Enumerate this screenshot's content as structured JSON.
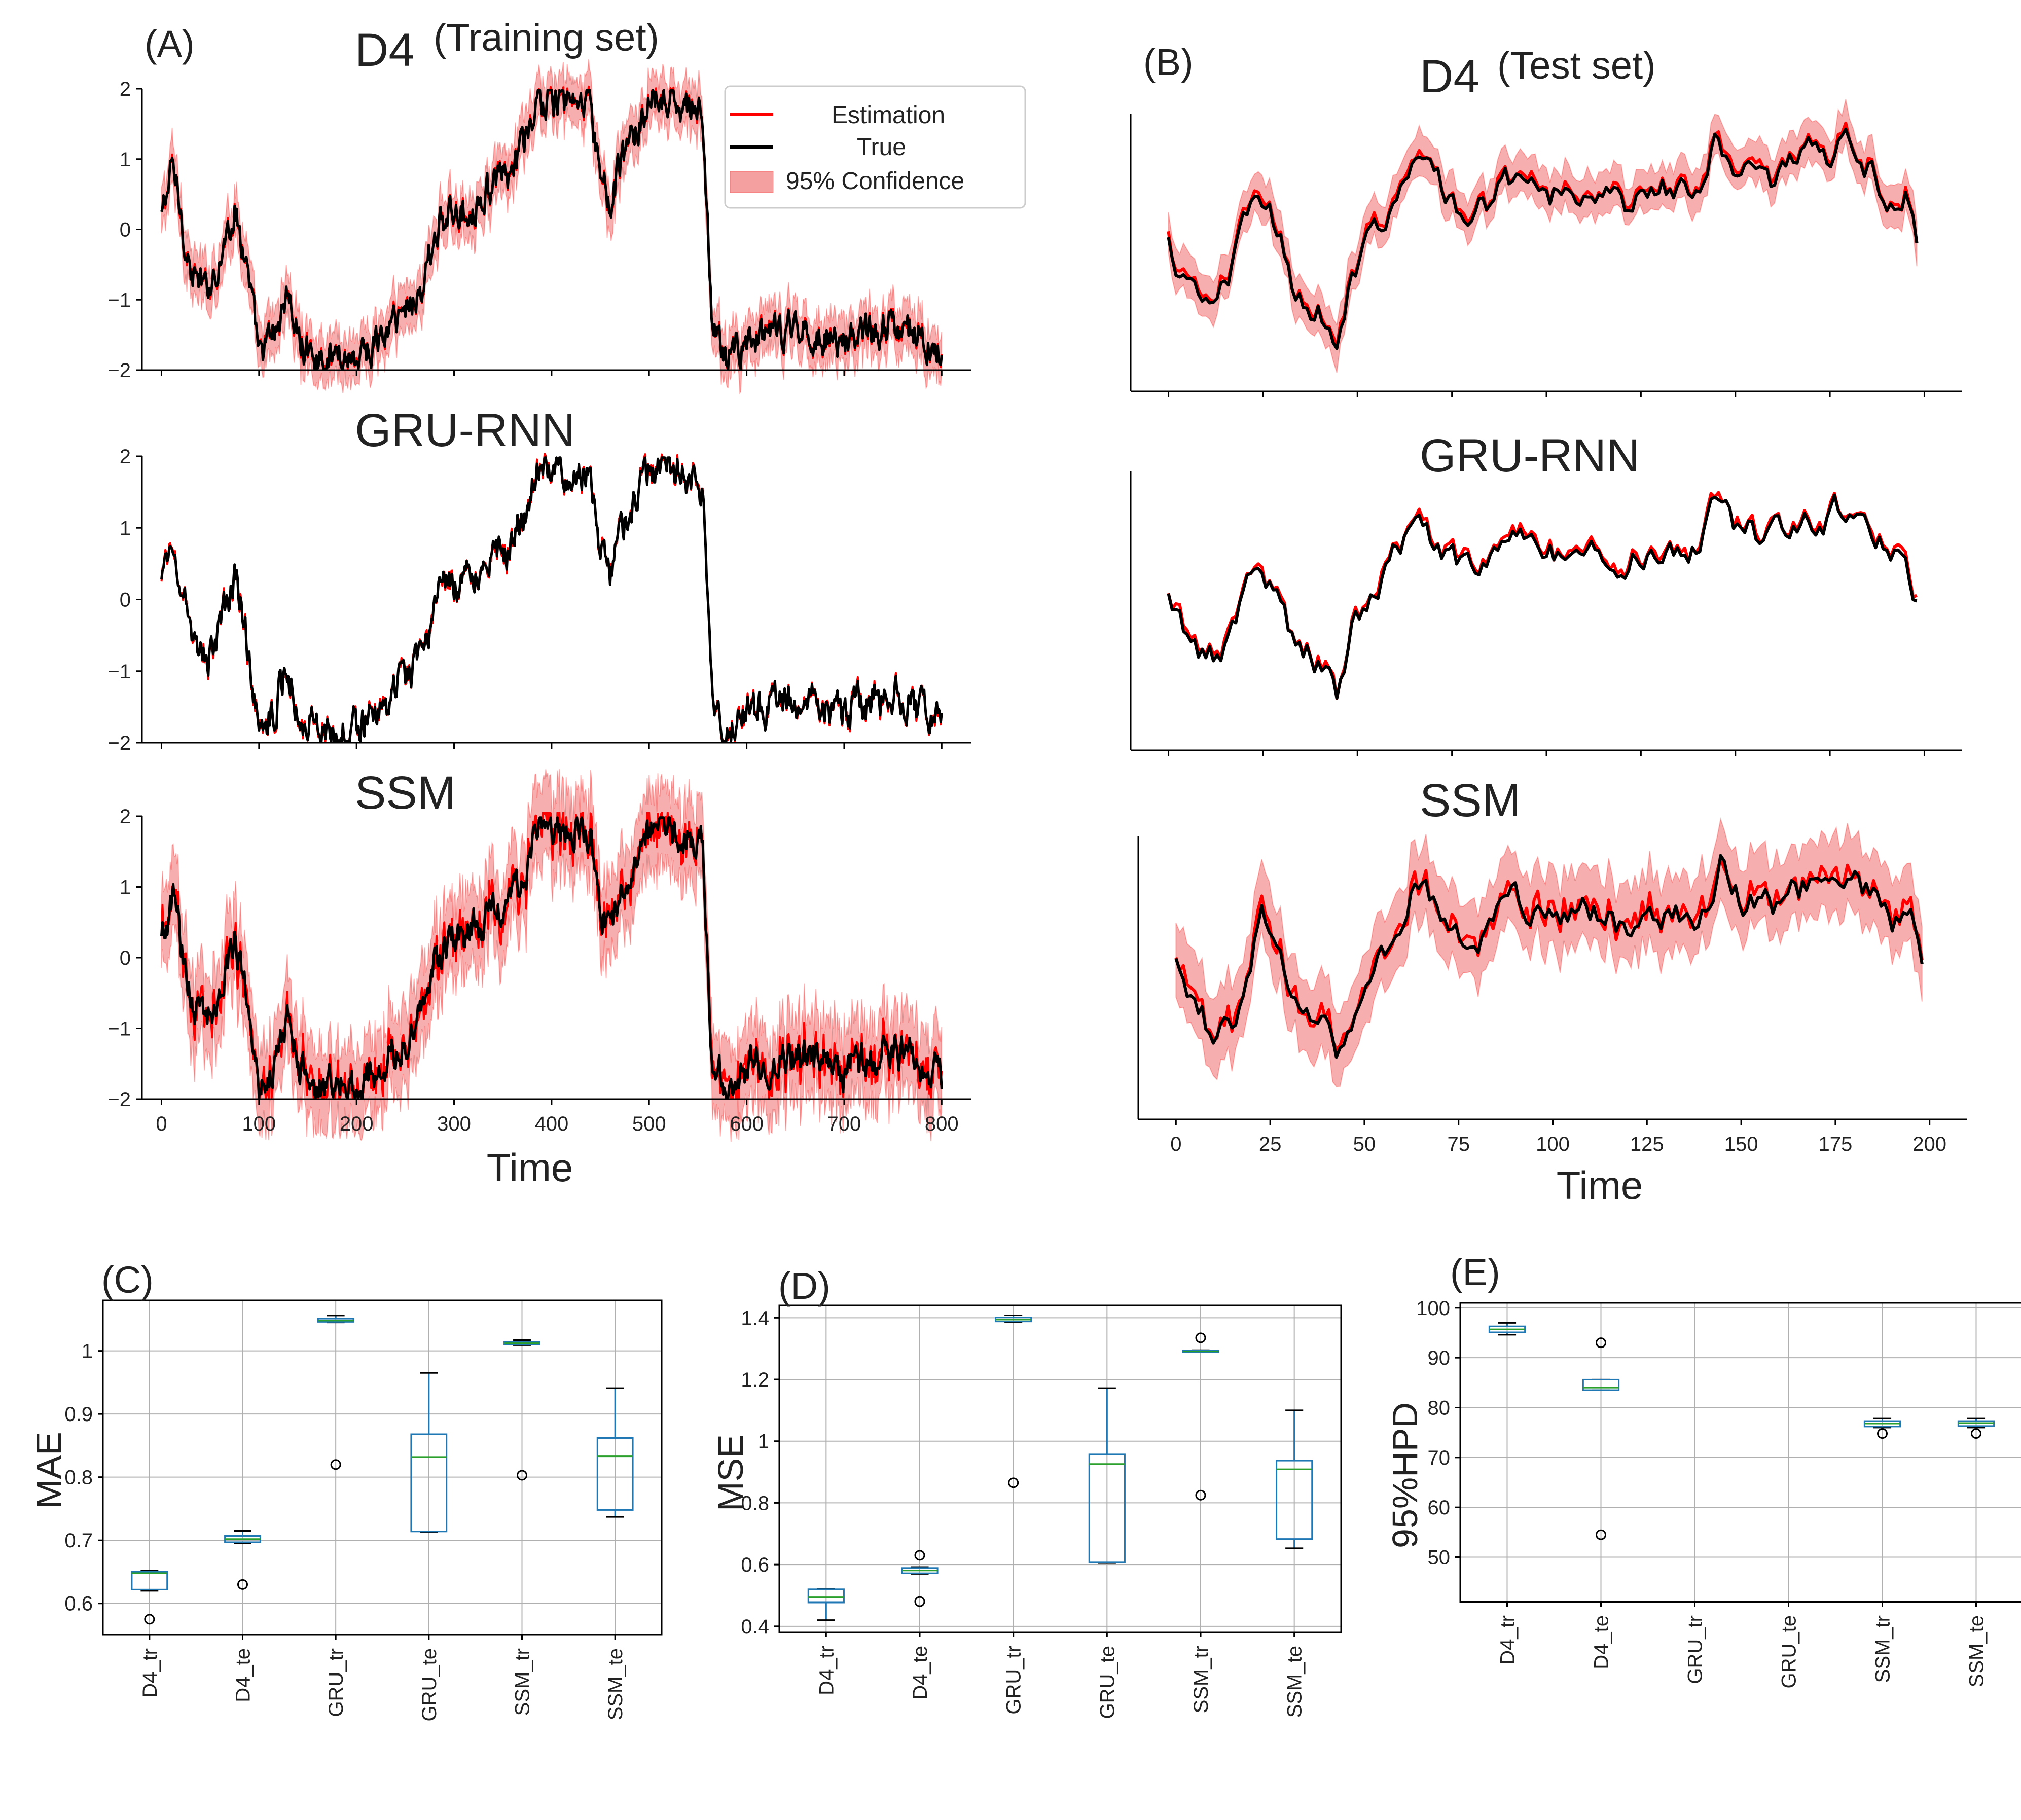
{
  "colors": {
    "estimation": "#ff0000",
    "true_line": "#000000",
    "band": "#f4a0a0",
    "box": "#1f77b4",
    "median": "#2ca02c",
    "grid": "#b0b0b0"
  },
  "panels": {
    "A": {
      "letter": "(A)",
      "title_model": "D4",
      "title_set": "(Training set)",
      "xlabel": "Time",
      "legend": [
        "Estimation",
        "True",
        "95% Confidence"
      ]
    },
    "B": {
      "letter": "(B)",
      "title_model": "D4",
      "title_set": "(Test set)",
      "xlabel": "Time"
    },
    "C": {
      "letter": "(C)",
      "ylabel": "MAE"
    },
    "D": {
      "letter": "(D)",
      "ylabel": "MSE"
    },
    "E": {
      "letter": "(E)",
      "ylabel": "95%HPD"
    }
  },
  "subtitles": {
    "gru": "GRU-RNN",
    "ssm": "SSM"
  },
  "chart_data": [
    {
      "id": "A-D4",
      "type": "line",
      "panel": "A",
      "title": "D4 (Training set)",
      "xlim": [
        -20,
        830
      ],
      "ylim": [
        -2,
        2
      ],
      "yticks": [
        -2,
        -1,
        0,
        1,
        2
      ],
      "xticks": [
        0,
        100,
        200,
        300,
        400,
        500,
        600,
        700,
        800
      ],
      "has_band": true,
      "keypoints": [
        [
          0,
          0.2
        ],
        [
          12,
          0.9
        ],
        [
          30,
          -0.6
        ],
        [
          45,
          -0.9
        ],
        [
          60,
          -0.4
        ],
        [
          75,
          0.3
        ],
        [
          85,
          -0.3
        ],
        [
          100,
          -1.8
        ],
        [
          115,
          -1.5
        ],
        [
          130,
          -0.9
        ],
        [
          140,
          -1.6
        ],
        [
          160,
          -1.8
        ],
        [
          200,
          -1.8
        ],
        [
          230,
          -1.5
        ],
        [
          250,
          -1.1
        ],
        [
          270,
          -0.8
        ],
        [
          280,
          0.0
        ],
        [
          300,
          0.2
        ],
        [
          320,
          0.4
        ],
        [
          340,
          0.6
        ],
        [
          360,
          0.8
        ],
        [
          375,
          1.3
        ],
        [
          385,
          1.8
        ],
        [
          400,
          1.8
        ],
        [
          420,
          1.8
        ],
        [
          440,
          1.7
        ],
        [
          450,
          0.8
        ],
        [
          460,
          0.3
        ],
        [
          470,
          0.9
        ],
        [
          480,
          1.2
        ],
        [
          500,
          1.8
        ],
        [
          520,
          1.8
        ],
        [
          540,
          1.7
        ],
        [
          555,
          1.6
        ],
        [
          565,
          -1.5
        ],
        [
          580,
          -1.8
        ],
        [
          600,
          -1.6
        ],
        [
          650,
          -1.4
        ],
        [
          700,
          -1.6
        ],
        [
          750,
          -1.3
        ],
        [
          800,
          -1.7
        ]
      ]
    },
    {
      "id": "A-GRU",
      "type": "line",
      "panel": "A",
      "title": "GRU-RNN",
      "xlim": [
        -20,
        830
      ],
      "ylim": [
        -2,
        2
      ],
      "yticks": [
        -2,
        -1,
        0,
        1,
        2
      ],
      "xticks": [
        0,
        100,
        200,
        300,
        400,
        500,
        600,
        700,
        800
      ],
      "has_band": false,
      "keypoints": [
        [
          0,
          0.2
        ],
        [
          12,
          0.9
        ],
        [
          30,
          -0.6
        ],
        [
          45,
          -0.9
        ],
        [
          60,
          -0.4
        ],
        [
          75,
          0.3
        ],
        [
          85,
          -0.3
        ],
        [
          100,
          -1.8
        ],
        [
          115,
          -1.5
        ],
        [
          130,
          -0.9
        ],
        [
          140,
          -1.6
        ],
        [
          160,
          -1.8
        ],
        [
          200,
          -1.8
        ],
        [
          230,
          -1.5
        ],
        [
          250,
          -1.1
        ],
        [
          270,
          -0.8
        ],
        [
          280,
          0.0
        ],
        [
          300,
          0.2
        ],
        [
          320,
          0.4
        ],
        [
          340,
          0.6
        ],
        [
          360,
          0.8
        ],
        [
          375,
          1.3
        ],
        [
          385,
          1.8
        ],
        [
          400,
          1.8
        ],
        [
          420,
          1.8
        ],
        [
          440,
          1.7
        ],
        [
          450,
          0.8
        ],
        [
          460,
          0.3
        ],
        [
          470,
          0.9
        ],
        [
          480,
          1.2
        ],
        [
          500,
          1.8
        ],
        [
          520,
          1.8
        ],
        [
          540,
          1.7
        ],
        [
          555,
          1.6
        ],
        [
          565,
          -1.5
        ],
        [
          580,
          -1.8
        ],
        [
          600,
          -1.6
        ],
        [
          650,
          -1.4
        ],
        [
          700,
          -1.6
        ],
        [
          750,
          -1.3
        ],
        [
          800,
          -1.7
        ]
      ]
    },
    {
      "id": "A-SSM",
      "type": "line",
      "panel": "A",
      "title": "SSM",
      "xlabel": "Time",
      "xlim": [
        -20,
        830
      ],
      "ylim": [
        -2,
        2
      ],
      "yticks": [
        -2,
        -1,
        0,
        1,
        2
      ],
      "xticks": [
        0,
        100,
        200,
        300,
        400,
        500,
        600,
        700,
        800
      ],
      "has_band": true,
      "keypoints": [
        [
          0,
          0.2
        ],
        [
          12,
          0.9
        ],
        [
          30,
          -0.6
        ],
        [
          45,
          -0.9
        ],
        [
          60,
          -0.4
        ],
        [
          75,
          0.3
        ],
        [
          85,
          -0.3
        ],
        [
          100,
          -1.8
        ],
        [
          115,
          -1.5
        ],
        [
          130,
          -0.9
        ],
        [
          140,
          -1.6
        ],
        [
          160,
          -1.8
        ],
        [
          200,
          -1.8
        ],
        [
          230,
          -1.5
        ],
        [
          250,
          -1.1
        ],
        [
          270,
          -0.8
        ],
        [
          280,
          0.0
        ],
        [
          300,
          0.2
        ],
        [
          320,
          0.4
        ],
        [
          340,
          0.6
        ],
        [
          360,
          0.8
        ],
        [
          375,
          1.3
        ],
        [
          385,
          1.8
        ],
        [
          400,
          1.8
        ],
        [
          420,
          1.8
        ],
        [
          440,
          1.7
        ],
        [
          450,
          0.8
        ],
        [
          460,
          0.3
        ],
        [
          470,
          0.9
        ],
        [
          480,
          1.2
        ],
        [
          500,
          1.8
        ],
        [
          520,
          1.8
        ],
        [
          540,
          1.7
        ],
        [
          555,
          1.6
        ],
        [
          565,
          -1.5
        ],
        [
          580,
          -1.8
        ],
        [
          600,
          -1.6
        ],
        [
          650,
          -1.4
        ],
        [
          700,
          -1.6
        ],
        [
          750,
          -1.3
        ],
        [
          800,
          -1.7
        ]
      ]
    },
    {
      "id": "B-D4",
      "type": "line",
      "panel": "B",
      "title": "D4 (Test set)",
      "xlim": [
        -10,
        210
      ],
      "ylim": [
        -2.2,
        2.0
      ],
      "yticks": [],
      "xticks": [
        0,
        25,
        50,
        75,
        100,
        125,
        150,
        175,
        200
      ],
      "has_band": true,
      "keypoints": [
        [
          0,
          0.0
        ],
        [
          5,
          -0.6
        ],
        [
          10,
          -0.9
        ],
        [
          15,
          -0.7
        ],
        [
          20,
          0.3
        ],
        [
          23,
          0.8
        ],
        [
          28,
          0.3
        ],
        [
          33,
          -0.6
        ],
        [
          40,
          -0.9
        ],
        [
          45,
          -1.4
        ],
        [
          48,
          -0.5
        ],
        [
          55,
          0.3
        ],
        [
          60,
          0.8
        ],
        [
          65,
          1.3
        ],
        [
          70,
          1.0
        ],
        [
          75,
          0.7
        ],
        [
          80,
          0.4
        ],
        [
          85,
          0.7
        ],
        [
          90,
          1.0
        ],
        [
          100,
          0.8
        ],
        [
          110,
          0.9
        ],
        [
          115,
          0.8
        ],
        [
          120,
          0.6
        ],
        [
          130,
          0.9
        ],
        [
          140,
          0.8
        ],
        [
          145,
          1.6
        ],
        [
          150,
          1.1
        ],
        [
          160,
          1.0
        ],
        [
          170,
          1.3
        ],
        [
          180,
          1.5
        ],
        [
          185,
          1.2
        ],
        [
          190,
          0.8
        ],
        [
          195,
          0.9
        ],
        [
          198,
          0.1
        ]
      ]
    },
    {
      "id": "B-GRU",
      "type": "line",
      "panel": "B",
      "title": "GRU-RNN",
      "xlim": [
        -10,
        210
      ],
      "ylim": [
        -2.2,
        2.0
      ],
      "yticks": [],
      "xticks": [
        0,
        25,
        50,
        75,
        100,
        125,
        150,
        175,
        200
      ],
      "has_band": false,
      "keypoints": [
        [
          0,
          0.0
        ],
        [
          5,
          -0.6
        ],
        [
          10,
          -0.9
        ],
        [
          15,
          -0.7
        ],
        [
          20,
          0.3
        ],
        [
          23,
          0.8
        ],
        [
          28,
          0.3
        ],
        [
          33,
          -0.6
        ],
        [
          40,
          -0.9
        ],
        [
          45,
          -1.4
        ],
        [
          48,
          -0.5
        ],
        [
          55,
          0.3
        ],
        [
          60,
          0.8
        ],
        [
          65,
          1.3
        ],
        [
          70,
          1.0
        ],
        [
          75,
          0.7
        ],
        [
          80,
          0.4
        ],
        [
          85,
          0.7
        ],
        [
          90,
          1.0
        ],
        [
          100,
          0.8
        ],
        [
          110,
          0.9
        ],
        [
          115,
          0.8
        ],
        [
          120,
          0.6
        ],
        [
          130,
          0.9
        ],
        [
          140,
          0.8
        ],
        [
          145,
          1.6
        ],
        [
          150,
          1.1
        ],
        [
          160,
          1.0
        ],
        [
          170,
          1.3
        ],
        [
          180,
          1.5
        ],
        [
          185,
          1.2
        ],
        [
          190,
          0.8
        ],
        [
          195,
          0.9
        ],
        [
          198,
          0.1
        ]
      ]
    },
    {
      "id": "B-SSM",
      "type": "line",
      "panel": "B",
      "title": "SSM",
      "xlabel": "Time",
      "xlim": [
        -10,
        210
      ],
      "ylim": [
        -2.2,
        2.0
      ],
      "yticks": [],
      "xticks": [
        0,
        25,
        50,
        75,
        100,
        125,
        150,
        175,
        200
      ],
      "has_band": true,
      "keypoints": [
        [
          0,
          0.0
        ],
        [
          5,
          -0.6
        ],
        [
          10,
          -0.9
        ],
        [
          15,
          -0.7
        ],
        [
          20,
          0.3
        ],
        [
          23,
          0.8
        ],
        [
          28,
          0.3
        ],
        [
          33,
          -0.6
        ],
        [
          40,
          -0.9
        ],
        [
          45,
          -1.4
        ],
        [
          48,
          -0.5
        ],
        [
          55,
          0.3
        ],
        [
          60,
          0.8
        ],
        [
          65,
          1.3
        ],
        [
          70,
          1.0
        ],
        [
          75,
          0.7
        ],
        [
          80,
          0.4
        ],
        [
          85,
          0.7
        ],
        [
          90,
          1.0
        ],
        [
          100,
          0.8
        ],
        [
          110,
          0.9
        ],
        [
          115,
          0.8
        ],
        [
          120,
          0.6
        ],
        [
          130,
          0.9
        ],
        [
          140,
          0.8
        ],
        [
          145,
          1.6
        ],
        [
          150,
          1.1
        ],
        [
          160,
          1.0
        ],
        [
          170,
          1.3
        ],
        [
          180,
          1.5
        ],
        [
          185,
          1.2
        ],
        [
          190,
          0.8
        ],
        [
          195,
          0.9
        ],
        [
          198,
          0.1
        ]
      ]
    },
    {
      "id": "C",
      "type": "box",
      "panel": "C",
      "ylabel": "MAE",
      "ylim": [
        0.55,
        1.08
      ],
      "yticks": [
        0.6,
        0.7,
        0.8,
        0.9,
        1.0
      ],
      "categories": [
        "D4_tr",
        "D4_te",
        "GRU_tr",
        "GRU_te",
        "SSM_tr",
        "SSM_te"
      ],
      "boxes": [
        {
          "whislo": 0.62,
          "q1": 0.622,
          "med": 0.648,
          "q3": 0.65,
          "whishi": 0.652,
          "fliers": [
            0.575
          ]
        },
        {
          "whislo": 0.695,
          "q1": 0.697,
          "med": 0.702,
          "q3": 0.707,
          "whishi": 0.715,
          "fliers": [
            0.63
          ]
        },
        {
          "whislo": 1.045,
          "q1": 1.046,
          "med": 1.048,
          "q3": 1.051,
          "whishi": 1.056,
          "fliers": [
            0.82
          ]
        },
        {
          "whislo": 0.713,
          "q1": 0.714,
          "med": 0.832,
          "q3": 0.868,
          "whishi": 0.965,
          "fliers": []
        },
        {
          "whislo": 1.009,
          "q1": 1.01,
          "med": 1.012,
          "q3": 1.014,
          "whishi": 1.017,
          "fliers": [
            0.803
          ]
        },
        {
          "whislo": 0.737,
          "q1": 0.748,
          "med": 0.833,
          "q3": 0.862,
          "whishi": 0.941,
          "fliers": []
        }
      ]
    },
    {
      "id": "D",
      "type": "box",
      "panel": "D",
      "ylabel": "MSE",
      "ylim": [
        0.38,
        1.44
      ],
      "yticks": [
        0.4,
        0.6,
        0.8,
        1.0,
        1.2,
        1.4
      ],
      "categories": [
        "D4_tr",
        "D4_te",
        "GRU_tr",
        "GRU_te",
        "SSM_tr",
        "SSM_te"
      ],
      "boxes": [
        {
          "whislo": 0.42,
          "q1": 0.477,
          "med": 0.494,
          "q3": 0.52,
          "whishi": 0.522,
          "fliers": []
        },
        {
          "whislo": 0.57,
          "q1": 0.572,
          "med": 0.581,
          "q3": 0.589,
          "whishi": 0.592,
          "fliers": [
            0.63,
            0.48
          ]
        },
        {
          "whislo": 1.385,
          "q1": 1.388,
          "med": 1.394,
          "q3": 1.401,
          "whishi": 1.408,
          "fliers": [
            0.865
          ]
        },
        {
          "whislo": 0.605,
          "q1": 0.607,
          "med": 0.926,
          "q3": 0.957,
          "whishi": 1.172,
          "fliers": []
        },
        {
          "whislo": 1.288,
          "q1": 1.289,
          "med": 1.291,
          "q3": 1.293,
          "whishi": 1.295,
          "fliers": [
            1.335,
            0.825
          ]
        },
        {
          "whislo": 0.653,
          "q1": 0.683,
          "med": 0.909,
          "q3": 0.937,
          "whishi": 1.1,
          "fliers": []
        }
      ]
    },
    {
      "id": "E",
      "type": "box",
      "panel": "E",
      "ylabel": "95%HPD",
      "ylim": [
        41,
        101
      ],
      "yticks": [
        50,
        60,
        70,
        80,
        90,
        100
      ],
      "categories": [
        "D4_tr",
        "D4_te",
        "GRU_tr",
        "GRU_te",
        "SSM_tr",
        "SSM_te"
      ],
      "boxes": [
        {
          "whislo": 94.6,
          "q1": 95.1,
          "med": 95.7,
          "q3": 96.3,
          "whishi": 97.0,
          "fliers": []
        },
        {
          "whislo": 83.5,
          "q1": 83.5,
          "med": 84.0,
          "q3": 85.6,
          "whishi": 85.6,
          "fliers": [
            93.0,
            54.5
          ]
        },
        null,
        null,
        {
          "whislo": 76.0,
          "q1": 76.2,
          "med": 76.8,
          "q3": 77.3,
          "whishi": 77.8,
          "fliers": [
            74.8
          ]
        },
        {
          "whislo": 76.0,
          "q1": 76.3,
          "med": 76.9,
          "q3": 77.3,
          "whishi": 77.8,
          "fliers": [
            74.8
          ]
        }
      ]
    }
  ]
}
